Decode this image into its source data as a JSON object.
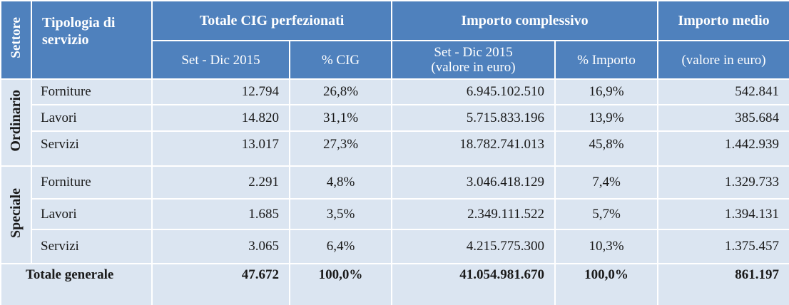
{
  "header": {
    "settore": "Settore",
    "tipologia": "Tipologia di servizio",
    "totale_cig": "Totale CIG perfezionati",
    "importo_complessivo": "Importo complessivo",
    "importo_medio": "Importo medio",
    "sub_set_dic": "Set - Dic 2015",
    "sub_pct_cig": "% CIG",
    "sub_set_dic_valore": "Set - Dic 2015",
    "sub_valore_in_euro_paren": "(valore in euro)",
    "sub_pct_importo": "% Importo",
    "sub_valore_in_euro": "(valore in euro)"
  },
  "sectors": [
    {
      "name": "Ordinario",
      "rows": [
        {
          "tipologia": "Forniture",
          "cig": "12.794",
          "pct_cig": "26,8%",
          "importo": "6.945.102.510",
          "pct_importo": "16,9%",
          "medio": "542.841"
        },
        {
          "tipologia": "Lavori",
          "cig": "14.820",
          "pct_cig": "31,1%",
          "importo": "5.715.833.196",
          "pct_importo": "13,9%",
          "medio": "385.684"
        },
        {
          "tipologia": "Servizi",
          "cig": "13.017",
          "pct_cig": "27,3%",
          "importo": "18.782.741.013",
          "pct_importo": "45,8%",
          "medio": "1.442.939"
        }
      ]
    },
    {
      "name": "Speciale",
      "rows": [
        {
          "tipologia": "Forniture",
          "cig": "2.291",
          "pct_cig": "4,8%",
          "importo": "3.046.418.129",
          "pct_importo": "7,4%",
          "medio": "1.329.733"
        },
        {
          "tipologia": "Lavori",
          "cig": "1.685",
          "pct_cig": "3,5%",
          "importo": "2.349.111.522",
          "pct_importo": "5,7%",
          "medio": "1.394.131"
        },
        {
          "tipologia": "Servizi",
          "cig": "3.065",
          "pct_cig": "6,4%",
          "importo": "4.215.775.300",
          "pct_importo": "10,3%",
          "medio": "1.375.457"
        }
      ]
    }
  ],
  "total": {
    "label": "Totale generale",
    "cig": "47.672",
    "pct_cig": "100,0%",
    "importo": "41.054.981.670",
    "pct_importo": "100,0%",
    "medio": "861.197"
  },
  "colors": {
    "header_bg": "#4f81bd",
    "body_bg": "#dbe5f1",
    "grid_line": "#ffffff"
  }
}
